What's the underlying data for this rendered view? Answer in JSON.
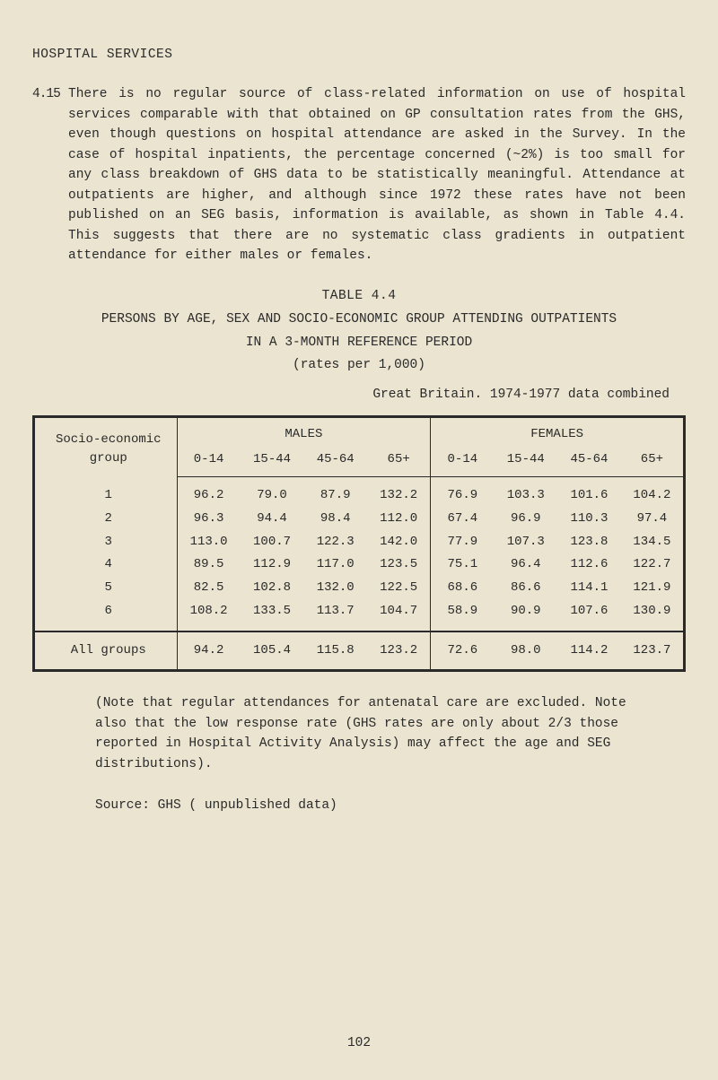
{
  "heading": "HOSPITAL SERVICES",
  "paragraph": {
    "number": "4.15",
    "text": "There is no regular source of class-related information on use of hospital services comparable with that obtained on GP consultation rates from the GHS, even though questions on hospital attendance are asked in the Survey. In the case of hospital inpatients, the percentage concerned (~2%) is too small for any class breakdown of GHS data to be statistically meaningful. Attendance at outpatients are higher, and although since 1972 these rates have not been published on an SEG basis, information is available, as shown in Table 4.4. This suggests that there are no systematic class gradients in outpatient attendance for either males or females."
  },
  "table": {
    "caption": "TABLE 4.4",
    "title": "PERSONS BY AGE, SEX AND SOCIO-ECONOMIC GROUP ATTENDING OUTPATIENTS",
    "sub1": "IN A 3-MONTH REFERENCE PERIOD",
    "sub2": "(rates per 1,000)",
    "right_note": "Great Britain.  1974-1977 data combined",
    "row_header": "Socio-economic group",
    "male_label": "MALES",
    "female_label": "FEMALES",
    "age_cols": [
      "0-14",
      "15-44",
      "45-64",
      "65+",
      "0-14",
      "15-44",
      "45-64",
      "65+"
    ],
    "rows": [
      {
        "label": "1",
        "vals": [
          "96.2",
          "79.0",
          "87.9",
          "132.2",
          "76.9",
          "103.3",
          "101.6",
          "104.2"
        ]
      },
      {
        "label": "2",
        "vals": [
          "96.3",
          "94.4",
          "98.4",
          "112.0",
          "67.4",
          "96.9",
          "110.3",
          "97.4"
        ]
      },
      {
        "label": "3",
        "vals": [
          "113.0",
          "100.7",
          "122.3",
          "142.0",
          "77.9",
          "107.3",
          "123.8",
          "134.5"
        ]
      },
      {
        "label": "4",
        "vals": [
          "89.5",
          "112.9",
          "117.0",
          "123.5",
          "75.1",
          "96.4",
          "112.6",
          "122.7"
        ]
      },
      {
        "label": "5",
        "vals": [
          "82.5",
          "102.8",
          "132.0",
          "122.5",
          "68.6",
          "86.6",
          "114.1",
          "121.9"
        ]
      },
      {
        "label": "6",
        "vals": [
          "108.2",
          "133.5",
          "113.7",
          "104.7",
          "58.9",
          "90.9",
          "107.6",
          "130.9"
        ]
      }
    ],
    "totals": {
      "label": "All groups",
      "vals": [
        "94.2",
        "105.4",
        "115.8",
        "123.2",
        "72.6",
        "98.0",
        "114.2",
        "123.7"
      ]
    }
  },
  "note": "(Note that regular attendances for antenatal care are excluded. Note also that the low response rate (GHS rates are only about 2/3 those reported in Hospital Activity Analysis) may affect the age and SEG distributions).",
  "source": "Source:  GHS ( unpublished data)",
  "page_number": "102",
  "colors": {
    "background": "#eae4d0",
    "text": "#2a2a2a",
    "table_border": "#2a2a2a"
  }
}
